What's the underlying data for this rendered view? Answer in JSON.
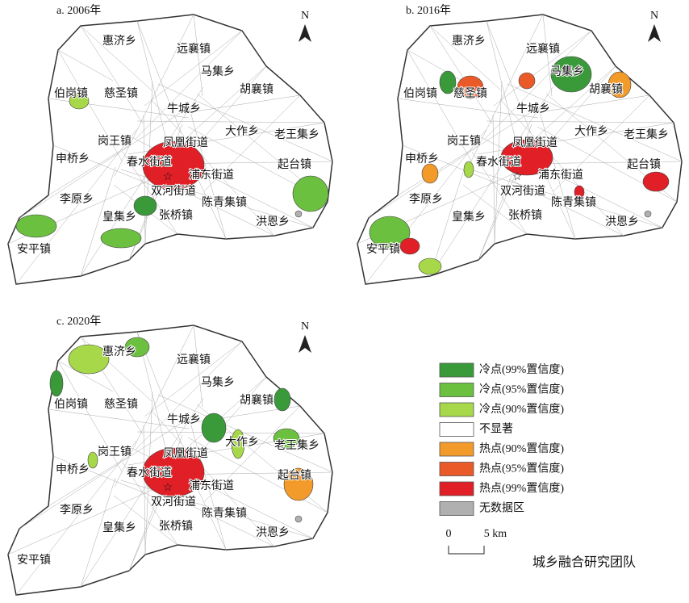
{
  "panels": [
    {
      "title": "a. 2006年",
      "north": "N",
      "labels": [
        "惠济乡",
        "远襄镇",
        "马集乡",
        "伯岗镇",
        "慈圣镇",
        "胡襄镇",
        "牛城乡",
        "岗王镇",
        "凤凰街道",
        "大作乡",
        "老王集乡",
        "申桥乡",
        "春水街道",
        "浦东街道",
        "起台镇",
        "双河街道",
        "李原乡",
        "陈青集镇",
        "皇集乡",
        "张桥镇",
        "洪恩乡",
        "安平镇"
      ]
    },
    {
      "title": "b. 2016年",
      "north": "N",
      "labels": [
        "惠济乡",
        "远襄镇",
        "马集乡",
        "伯岗镇",
        "慈圣镇",
        "胡襄镇",
        "牛城乡",
        "岗王镇",
        "凤凰街道",
        "大作乡",
        "老王集乡",
        "申桥乡",
        "春水街道",
        "浦东街道",
        "起台镇",
        "双河街道",
        "李原乡",
        "陈青集镇",
        "皇集乡",
        "张桥镇",
        "洪恩乡",
        "安平镇"
      ]
    },
    {
      "title": "c. 2020年",
      "north": "N",
      "labels": [
        "惠济乡",
        "远襄镇",
        "马集乡",
        "伯岗镇",
        "慈圣镇",
        "胡襄镇",
        "牛城乡",
        "岗王镇",
        "凤凰街道",
        "大作乡",
        "老王集乡",
        "申桥乡",
        "春水街道",
        "浦东街道",
        "起台镇",
        "双河街道",
        "李原乡",
        "陈青集镇",
        "皇集乡",
        "张桥镇",
        "洪恩乡",
        "安平镇"
      ]
    }
  ],
  "legend": [
    {
      "label": "冷点(99%置信度)",
      "color": "#3a9a3a"
    },
    {
      "label": "冷点(95%置信度)",
      "color": "#6cc040"
    },
    {
      "label": "冷点(90%置信度)",
      "color": "#a6d84a"
    },
    {
      "label": "不显著",
      "color": "#ffffff"
    },
    {
      "label": "热点(90%置信度)",
      "color": "#f29a2a"
    },
    {
      "label": "热点(95%置信度)",
      "color": "#ea5a28"
    },
    {
      "label": "热点(99%置信度)",
      "color": "#e01f26"
    },
    {
      "label": "无数据区",
      "color": "#b0b0b0"
    }
  ],
  "scale": {
    "start": "0",
    "end": "5 km"
  },
  "watermark": "城乡融合研究团队"
}
